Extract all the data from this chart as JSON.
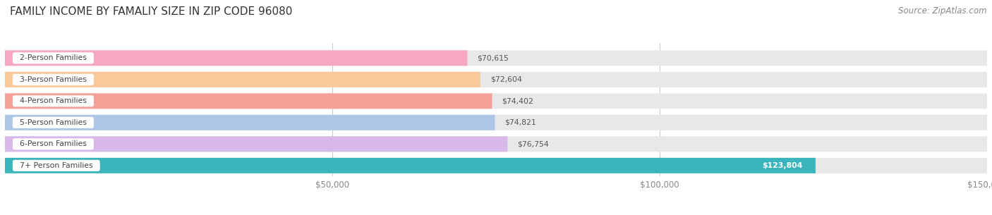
{
  "title": "FAMILY INCOME BY FAMALIY SIZE IN ZIP CODE 96080",
  "source": "Source: ZipAtlas.com",
  "categories": [
    "2-Person Families",
    "3-Person Families",
    "4-Person Families",
    "5-Person Families",
    "6-Person Families",
    "7+ Person Families"
  ],
  "values": [
    70615,
    72604,
    74402,
    74821,
    76754,
    123804
  ],
  "bar_colors": [
    "#f5a8bf",
    "#f9c99a",
    "#f4a097",
    "#adc6e8",
    "#d8b8e8",
    "#3ab5bc"
  ],
  "value_labels": [
    "$70,615",
    "$72,604",
    "$74,402",
    "$74,821",
    "$76,754",
    "$123,804"
  ],
  "xlim": [
    0,
    150000
  ],
  "xticks": [
    50000,
    100000,
    150000
  ],
  "xtick_labels": [
    "$50,000",
    "$100,000",
    "$150,000"
  ],
  "bg_color": "#ffffff",
  "bar_bg_color": "#e8e8e8",
  "title_fontsize": 11,
  "source_fontsize": 8.5,
  "label_box_border_colors": [
    "#f5a8bf",
    "#f9c99a",
    "#f4a097",
    "#adc6e8",
    "#d8b8e8",
    "#3ab5bc"
  ]
}
